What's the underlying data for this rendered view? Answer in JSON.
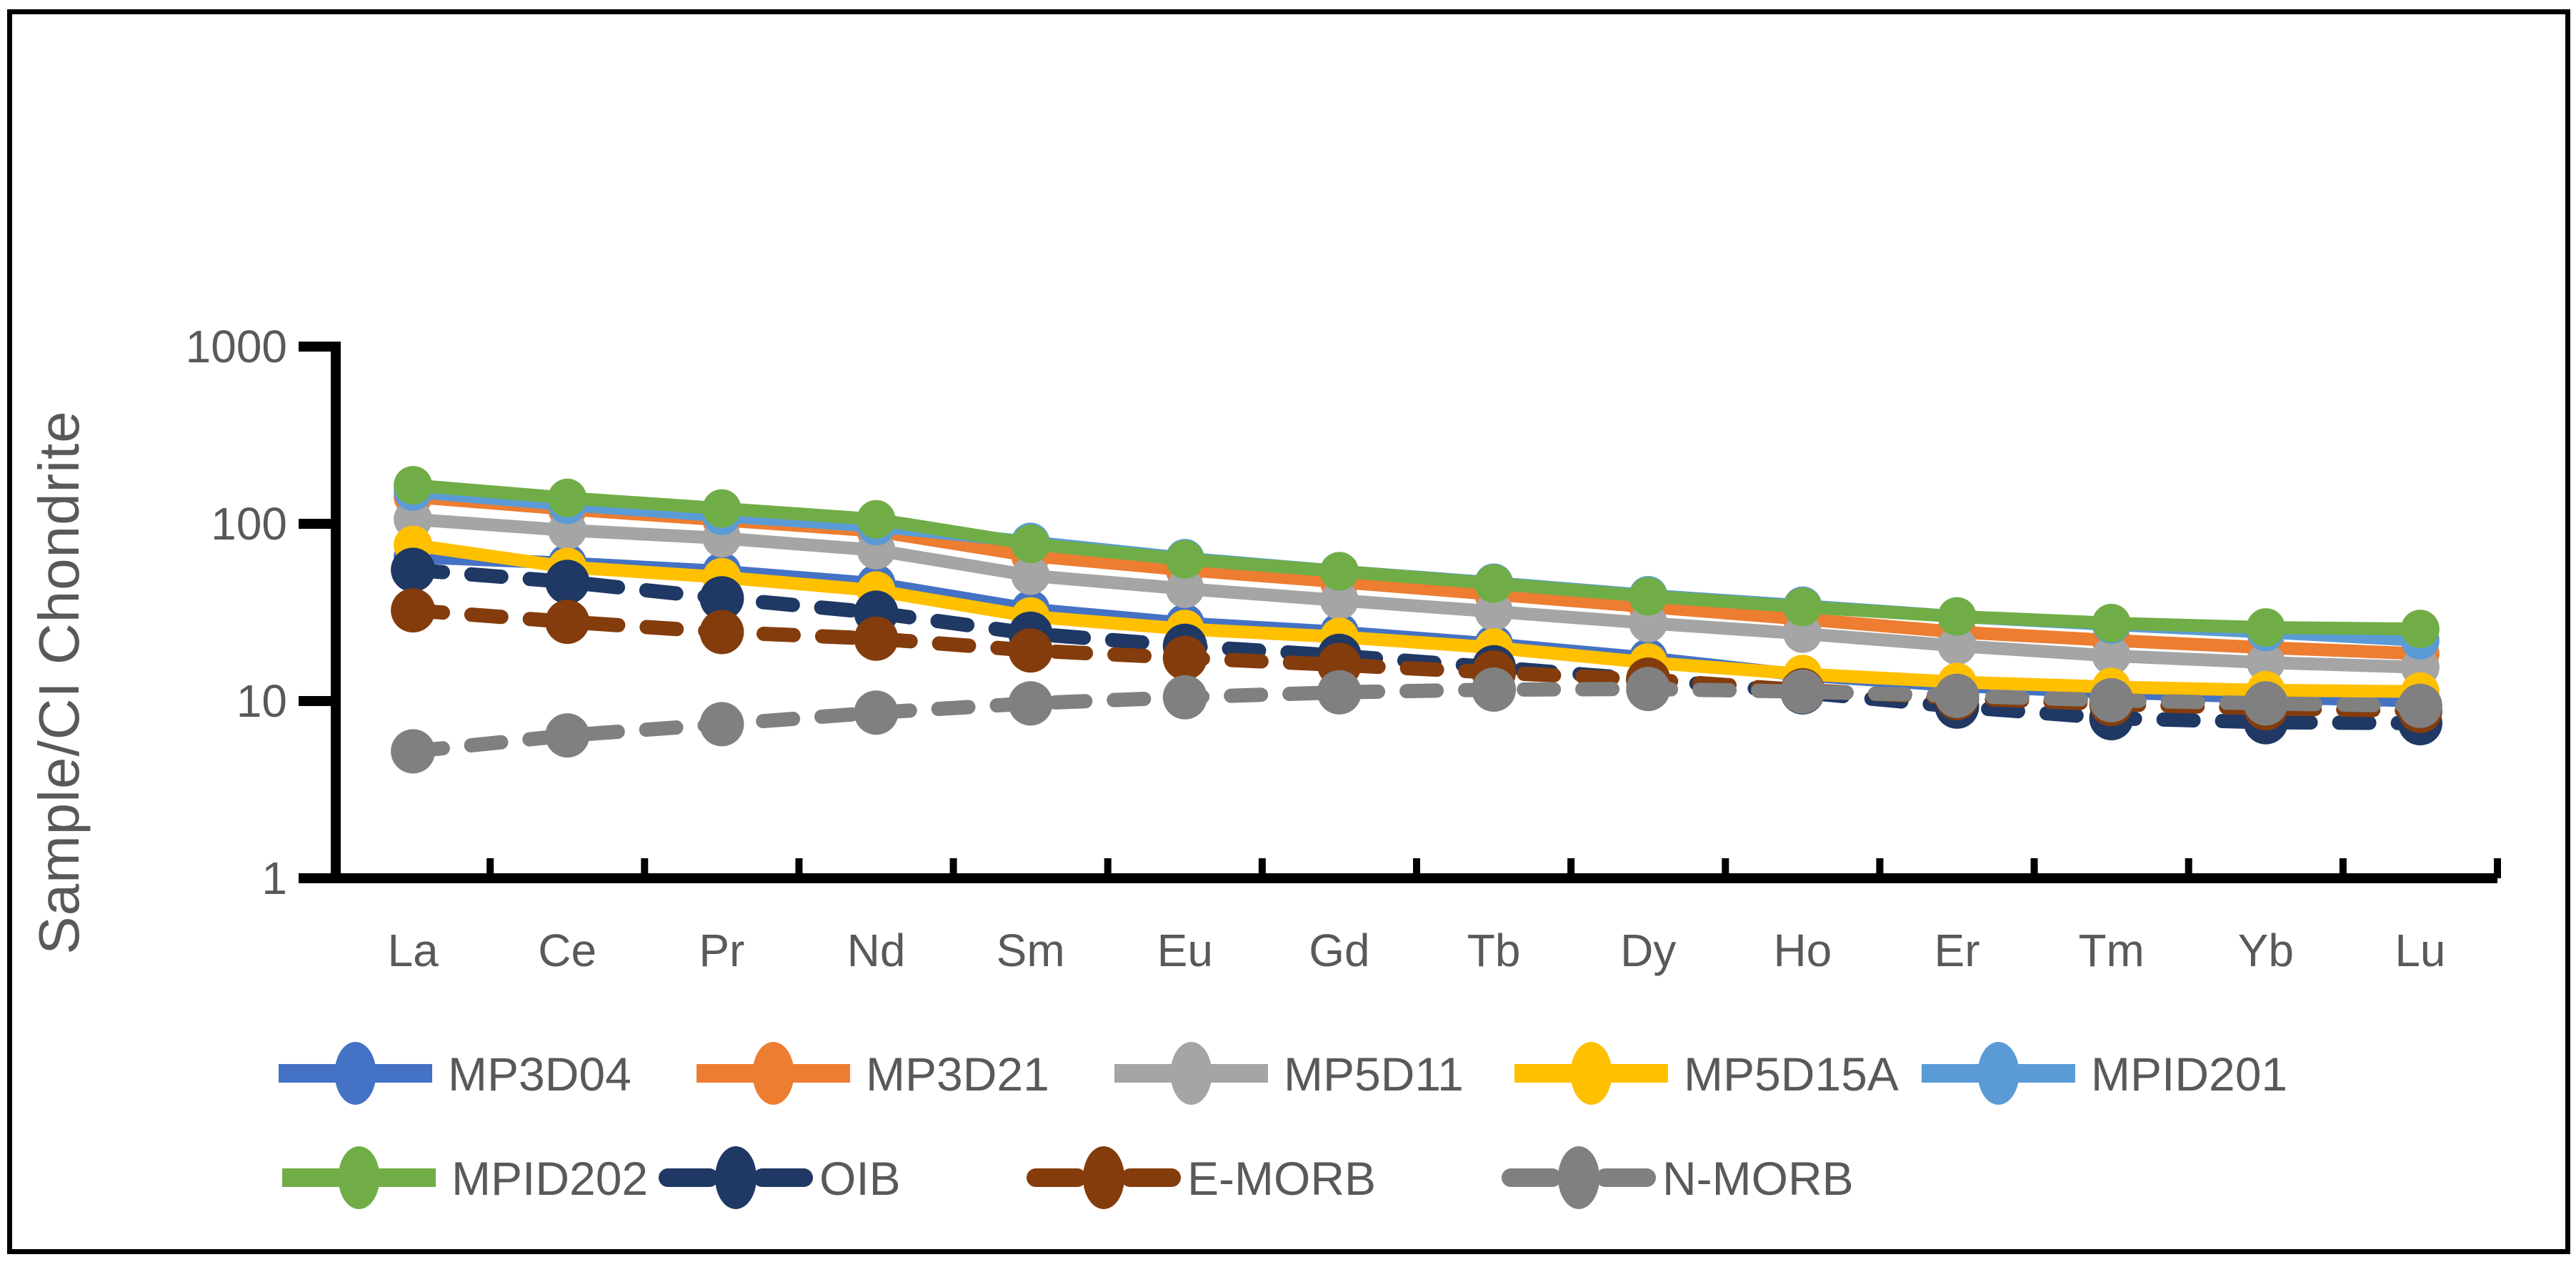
{
  "figure": {
    "background": "#FFFFFF",
    "border_color": "#000000",
    "axis_color": "#000000",
    "text_color": "#595959"
  },
  "chart_data": {
    "type": "line",
    "ylabel": "Sample/CI Chondrite",
    "xlabel": "",
    "y_scale": "log",
    "ylim": [
      1,
      1000
    ],
    "y_ticks": [
      1000,
      100,
      10,
      1
    ],
    "grid": false,
    "legend_position": "bottom",
    "categories": [
      "La",
      "Ce",
      "Pr",
      "Nd",
      "Sm",
      "Eu",
      "Gd",
      "Tb",
      "Dy",
      "Ho",
      "Er",
      "Tm",
      "Yb",
      "Lu"
    ],
    "series": [
      {
        "name": "MP3D04",
        "color": "#4472C4",
        "style": "solid",
        "values": [
          65,
          60,
          54,
          46,
          33,
          27.5,
          24.5,
          21,
          17.5,
          14,
          12.2,
          11.2,
          10.5,
          10
        ]
      },
      {
        "name": "MP3D21",
        "color": "#ED7D31",
        "style": "solid",
        "values": [
          142,
          121,
          105,
          91,
          66,
          55,
          47,
          40,
          34,
          29,
          24.5,
          22,
          20,
          18.5
        ]
      },
      {
        "name": "MP5D11",
        "color": "#A5A5A5",
        "style": "solid",
        "values": [
          106,
          92,
          83,
          71,
          51,
          43,
          37,
          32,
          27.5,
          24,
          20.5,
          18,
          16.5,
          15.5
        ]
      },
      {
        "name": "MP5D15A",
        "color": "#FFC000",
        "style": "solid",
        "values": [
          76,
          57,
          50,
          42,
          30,
          25.5,
          23,
          20,
          16.5,
          14.2,
          12.8,
          12,
          11.5,
          11.3
        ]
      },
      {
        "name": "MPID201",
        "color": "#5B9BD5",
        "style": "solid",
        "values": [
          152,
          128,
          111,
          97,
          79,
          64,
          54,
          46.5,
          39.5,
          34.5,
          30,
          27,
          24.5,
          22
        ]
      },
      {
        "name": "MPID202",
        "color": "#70AD47",
        "style": "solid",
        "values": [
          165,
          140,
          122,
          106,
          77,
          63,
          54,
          46,
          39,
          34,
          30,
          27.5,
          26,
          25.5
        ]
      },
      {
        "name": "OIB",
        "color": "#1F3864",
        "style": "dashed",
        "values": [
          55,
          47,
          38,
          31.5,
          24,
          20.5,
          18,
          15.5,
          13.2,
          11.2,
          9.3,
          8,
          7.6,
          7.5
        ]
      },
      {
        "name": "E-MORB",
        "color": "#843C0C",
        "style": "dashed",
        "values": [
          32.5,
          28,
          24.5,
          22.5,
          19.3,
          17.5,
          16,
          14.5,
          13.2,
          11.5,
          10.4,
          9.6,
          9.1,
          8.8
        ]
      },
      {
        "name": "N-MORB",
        "color": "#808080",
        "style": "dashed",
        "values": [
          5.2,
          6.4,
          7.4,
          8.6,
          9.7,
          10.5,
          11.2,
          11.6,
          11.7,
          11.3,
          10.7,
          10.1,
          9.7,
          9.4
        ]
      }
    ]
  }
}
